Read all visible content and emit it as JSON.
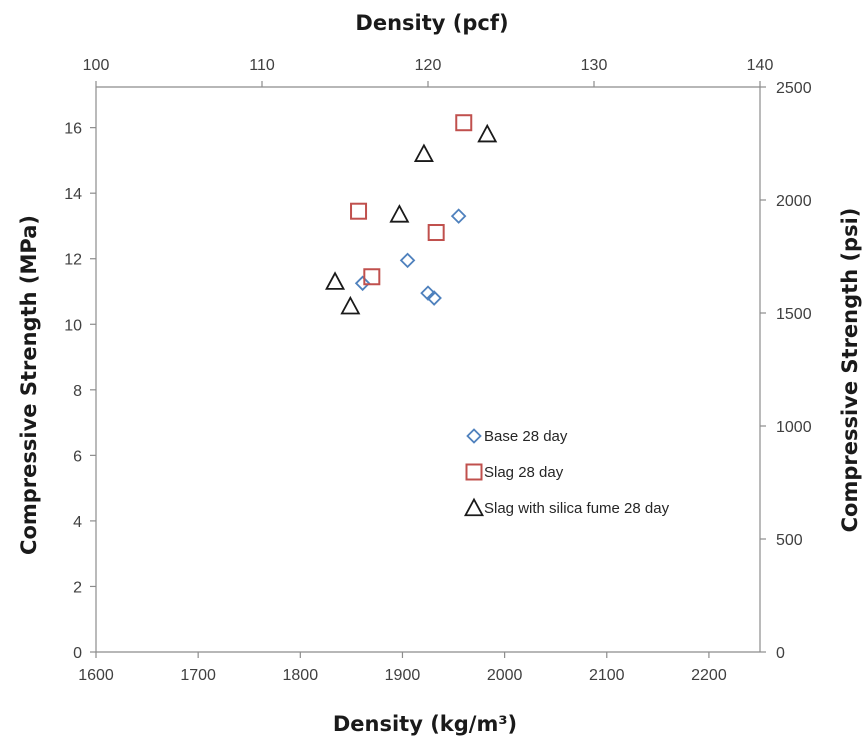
{
  "chart_data": {
    "type": "scatter",
    "title": "",
    "xlabel": "Density (kg/m³)",
    "ylabel": "Compressive Strength (MPa)",
    "x2label": "Density (pcf)",
    "y2label": "Compressive Strength (psi)",
    "xlim": [
      1600,
      2250
    ],
    "ylim": [
      0,
      17.24
    ],
    "x2lim": [
      100,
      140
    ],
    "y2lim": [
      0,
      2500
    ],
    "x_ticks": [
      "1600",
      "1700",
      "1800",
      "1900",
      "2000",
      "2100",
      "2200"
    ],
    "y_ticks": [
      "0",
      "2",
      "4",
      "6",
      "8",
      "10",
      "12",
      "14",
      "16"
    ],
    "x2_ticks": [
      "100",
      "110",
      "120",
      "130",
      "140"
    ],
    "y2_ticks": [
      "0",
      "500",
      "1000",
      "1500",
      "2000",
      "2500"
    ],
    "grid": false,
    "legend_position": "bottom-right",
    "series": [
      {
        "name": "Base 28 day",
        "marker": "diamond",
        "color": "#4f81bd",
        "points": [
          {
            "x": 1861,
            "y": 11.25
          },
          {
            "x": 1905,
            "y": 11.95
          },
          {
            "x": 1925,
            "y": 10.95
          },
          {
            "x": 1931,
            "y": 10.8
          },
          {
            "x": 1955,
            "y": 13.3
          }
        ]
      },
      {
        "name": "Slag 28 day",
        "marker": "square",
        "color": "#c0504d",
        "points": [
          {
            "x": 1857,
            "y": 13.45
          },
          {
            "x": 1870,
            "y": 11.45
          },
          {
            "x": 1933,
            "y": 12.8
          },
          {
            "x": 1960,
            "y": 16.15
          }
        ]
      },
      {
        "name": "Slag with silica fume 28 day",
        "marker": "triangle",
        "color": "#1a1a1a",
        "points": [
          {
            "x": 1834,
            "y": 11.3
          },
          {
            "x": 1849,
            "y": 10.55
          },
          {
            "x": 1897,
            "y": 13.35
          },
          {
            "x": 1921,
            "y": 15.2
          },
          {
            "x": 1983,
            "y": 15.8
          }
        ]
      }
    ]
  }
}
